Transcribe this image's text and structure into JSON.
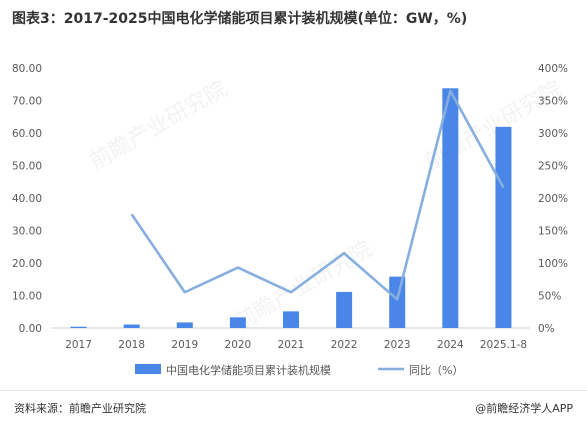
{
  "title": "图表3：2017-2025中国电化学储能项目累计装机规模(单位：GW，%)",
  "source_left": "资料来源：前瞻产业研究院",
  "source_right": "@前瞻经济学人APP",
  "watermark": "前瞻产业研究院",
  "colors": {
    "bar": "#4a86e8",
    "line": "#86aedf",
    "axis": "#cfcfcf",
    "text": "#595959"
  },
  "chart_data": {
    "type": "bar",
    "categories": [
      "2017",
      "2018",
      "2019",
      "2020",
      "2021",
      "2022",
      "2023",
      "2024",
      "2025.1-8"
    ],
    "series": [
      {
        "name": "中国电化学储能项目累计装机规模",
        "type": "bar",
        "axis": "left",
        "values": [
          0.39,
          1.07,
          1.71,
          3.27,
          5.12,
          11.1,
          15.8,
          73.76,
          61.9
        ]
      },
      {
        "name": "同比（%）",
        "type": "line",
        "axis": "right",
        "values": [
          null,
          175,
          55,
          93,
          55,
          115,
          44,
          365,
          216
        ]
      }
    ],
    "ylim": [
      0,
      80
    ],
    "y_ticks": [
      "0.00",
      "10.00",
      "20.00",
      "30.00",
      "40.00",
      "50.00",
      "60.00",
      "70.00",
      "80.00"
    ],
    "y2lim": [
      0,
      400
    ],
    "y2_ticks": [
      "0%",
      "50%",
      "100%",
      "150%",
      "200%",
      "250%",
      "300%",
      "350%",
      "400%"
    ],
    "grid": false,
    "legend": "bottom"
  }
}
